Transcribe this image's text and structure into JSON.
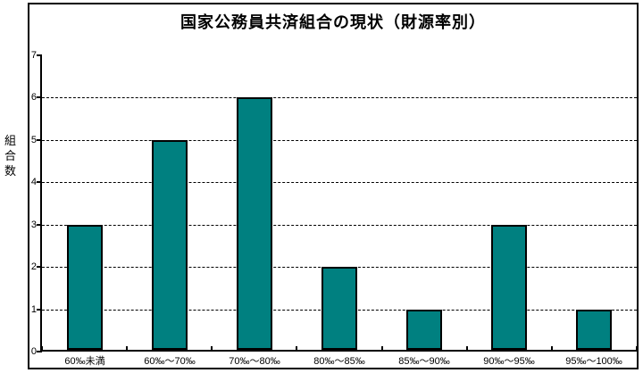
{
  "title": "国家公務員共済組合の現状（財源率別）",
  "y_axis": {
    "label": "組合数",
    "tick_labels": [
      "0",
      "1",
      "2",
      "3",
      "4",
      "5",
      "6",
      "7"
    ]
  },
  "chart_data": {
    "type": "bar",
    "title": "国家公務員共済組合の現状（財源率別）",
    "categories": [
      "60‰未満",
      "60‰～70‰",
      "70‰～80‰",
      "80‰～85‰",
      "85‰～90‰",
      "90‰～95‰",
      "95‰～100‰"
    ],
    "values": [
      3,
      5,
      6,
      2,
      1,
      3,
      1
    ],
    "xlabel": "",
    "ylabel": "組合数",
    "ylim": [
      0,
      7
    ],
    "y_tick_step": 1,
    "gridlines": "horizontal-dashed",
    "legend_position": "none",
    "bar_color": "#008080",
    "bar_border_color": "#000000",
    "grid_color": "#000000",
    "axis_color": "#000000",
    "background_color": "#ffffff"
  }
}
